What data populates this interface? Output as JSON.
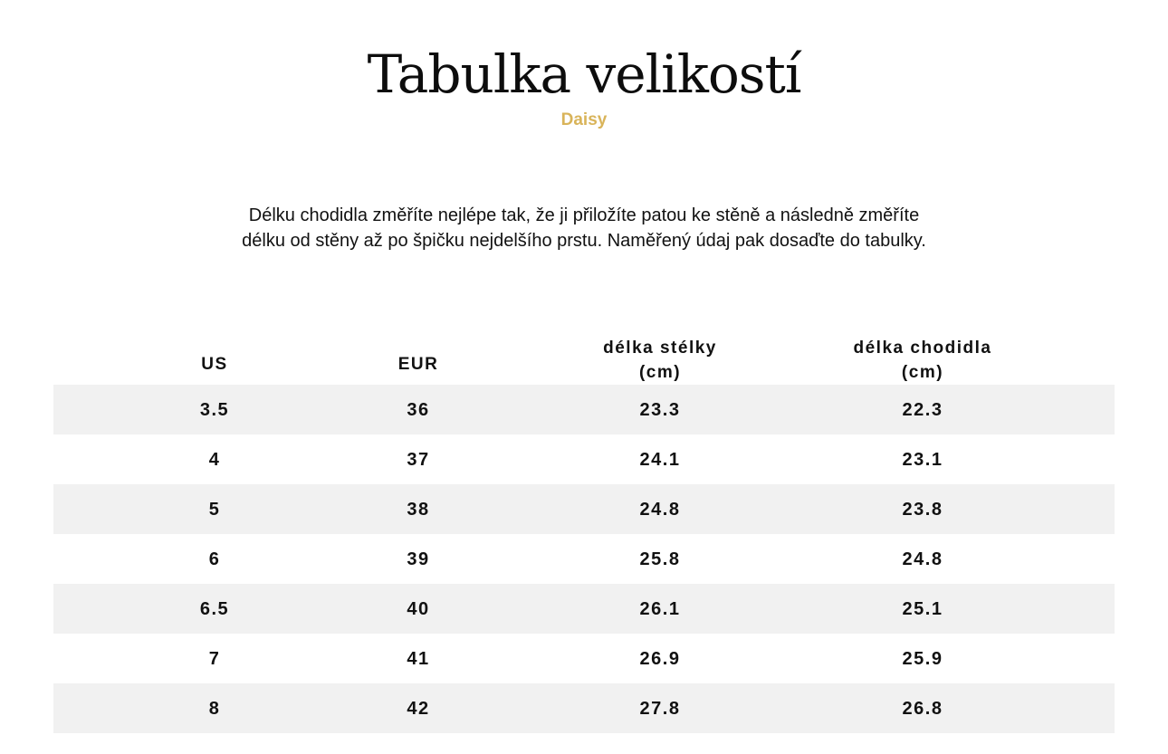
{
  "header": {
    "title": "Tabulka velikostí",
    "subtitle": "Daisy",
    "brand_color": "#d9b45a"
  },
  "intro": {
    "line1": "Délku chodidla změříte nejlépe tak, že ji přiložíte patou ke stěně a následně změříte",
    "line2": "délku od stěny až po špičku nejdelšího prstu. Naměřený údaj pak dosaďte do tabulky."
  },
  "table": {
    "columns": [
      {
        "line1": "US",
        "line2": ""
      },
      {
        "line1": "EUR",
        "line2": ""
      },
      {
        "line1": "délka stélky",
        "line2": "(cm)"
      },
      {
        "line1": "délka chodidla",
        "line2": "(cm)"
      }
    ],
    "rows": [
      [
        "3.5",
        "36",
        "23.3",
        "22.3"
      ],
      [
        "4",
        "37",
        "24.1",
        "23.1"
      ],
      [
        "5",
        "38",
        "24.8",
        "23.8"
      ],
      [
        "6",
        "39",
        "25.8",
        "24.8"
      ],
      [
        "6.5",
        "40",
        "26.1",
        "25.1"
      ],
      [
        "7",
        "41",
        "26.9",
        "25.9"
      ],
      [
        "8",
        "42",
        "27.8",
        "26.8"
      ]
    ]
  }
}
